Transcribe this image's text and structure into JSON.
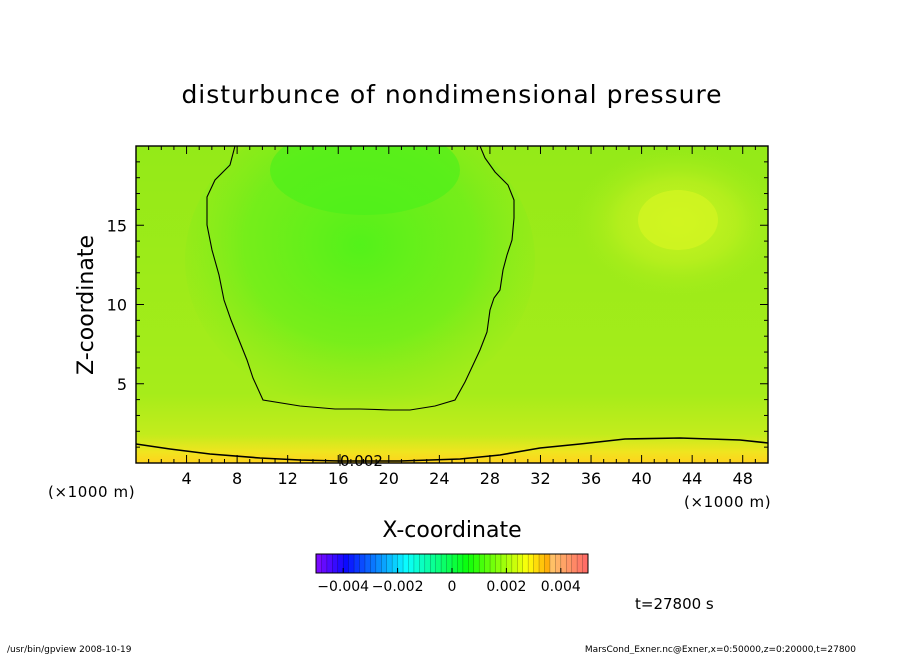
{
  "chart_data": {
    "type": "heatmap",
    "title": "disturbunce of nondimensional pressure",
    "xlabel": "X-coordinate",
    "ylabel": "Z-coordinate",
    "x_unit": "(×1000 m)",
    "z_unit": "(×1000 m)",
    "xlim": [
      0,
      50
    ],
    "ylim": [
      0,
      20
    ],
    "x_ticks": [
      4,
      8,
      12,
      16,
      20,
      24,
      28,
      32,
      36,
      40,
      44,
      48
    ],
    "y_ticks": [
      5,
      10,
      15
    ],
    "contour_label": "0.002",
    "contour_levels": [
      0,
      0.002
    ],
    "colorbar": {
      "range": [
        -0.005,
        0.005
      ],
      "ticks": [
        -0.004,
        -0.002,
        0,
        0.002,
        0.004
      ],
      "tick_labels": [
        "−0.004",
        "−0.002",
        "0",
        "0.002",
        "0.004"
      ]
    },
    "time_label": "t=27800 s",
    "footer_left": "/usr/bin/gpview   2008-10-19",
    "footer_right": "MarsCond_Exner.nc@Exner,x=0:50000,z=0:20000,t=27800"
  }
}
